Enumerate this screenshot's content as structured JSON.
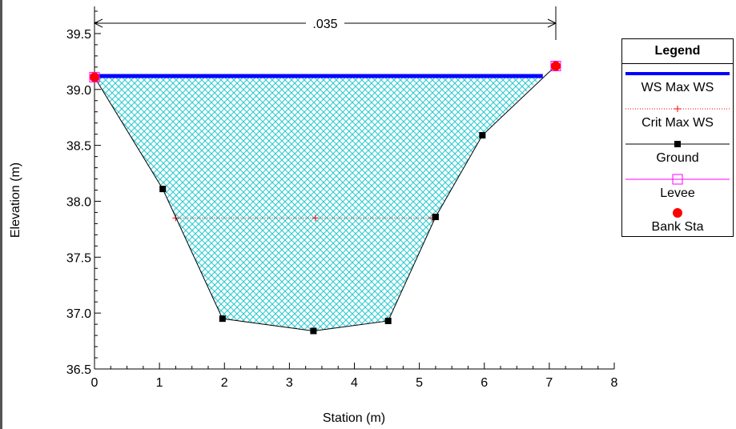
{
  "chart_data": {
    "type": "line",
    "title": "",
    "xlabel": "Station (m)",
    "ylabel": "Elevation (m)",
    "xlim": [
      0,
      8
    ],
    "ylim": [
      36.5,
      39.7
    ],
    "x_ticks": [
      "0",
      "1",
      "2",
      "3",
      "4",
      "5",
      "6",
      "7",
      "8"
    ],
    "y_ticks": [
      "36.5",
      "37.0",
      "37.5",
      "38.0",
      "38.5",
      "39.0",
      "39.5"
    ],
    "annotation": ".035",
    "manning_span": [
      0,
      7.1
    ],
    "series": [
      {
        "name": "WS Max WS",
        "color": "#0000ff",
        "x": [
          0,
          6.9
        ],
        "y": [
          39.12,
          39.12
        ]
      },
      {
        "name": "Crit Max WS",
        "color": "#ff0000",
        "x": [
          1.25,
          3.4,
          5.2
        ],
        "y": [
          37.85,
          37.85,
          37.85
        ]
      },
      {
        "name": "Ground",
        "color": "#000000",
        "x": [
          0,
          1.05,
          1.97,
          3.37,
          4.52,
          5.25,
          5.97,
          6.95,
          7.1
        ],
        "y": [
          39.11,
          38.11,
          36.95,
          36.84,
          36.93,
          37.86,
          38.59,
          39.13,
          39.21
        ]
      },
      {
        "name": "Levee",
        "color": "#ff00ff",
        "x": [
          7.1
        ],
        "y": [
          39.21
        ]
      },
      {
        "name": "Bank Sta",
        "color": "#ff0000",
        "x": [
          0,
          7.1
        ],
        "y": [
          39.11,
          39.21
        ]
      }
    ],
    "legend_title": "Legend",
    "legend_placement": "right",
    "fill": {
      "name": "water",
      "color": "#00c8d2",
      "pattern": "crosshatch"
    }
  }
}
